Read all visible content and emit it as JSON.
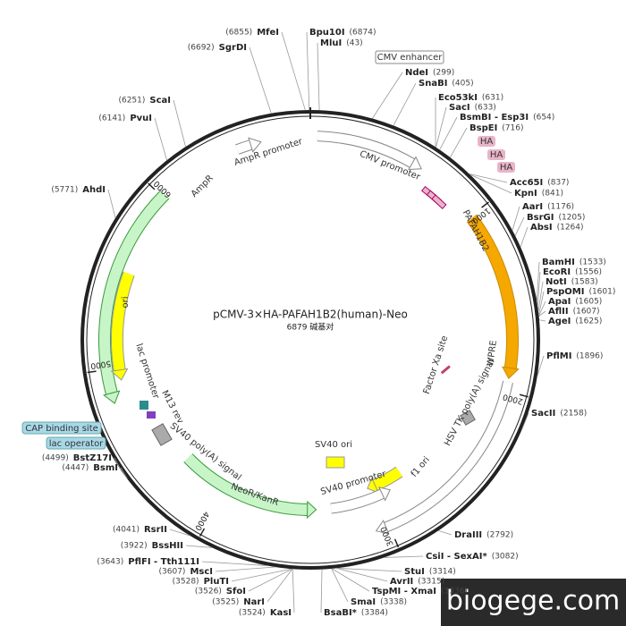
{
  "title": "pCMV-3×HA-PAFAH1B2(human)-Neo",
  "subtitle": "6879 碱基对",
  "watermark": "biogege.com",
  "ticks": [
    1000,
    2000,
    3000,
    4000,
    5000,
    6000
  ],
  "sites_right": [
    {
      "name": "Bpu10I",
      "position": "(6874)"
    },
    {
      "name": "MluI",
      "position": "(43)"
    },
    {
      "name": "NdeI",
      "position": "(299)"
    },
    {
      "name": "SnaBI",
      "position": "(405)"
    },
    {
      "name": "Eco53kI",
      "position": "(631)"
    },
    {
      "name": "SacI",
      "position": "(633)"
    },
    {
      "name": "BsmBI - Esp3I",
      "position": "(654)"
    },
    {
      "name": "BspEI",
      "position": "(716)"
    },
    {
      "name": "Acc65I",
      "position": "(837)"
    },
    {
      "name": "KpnI",
      "position": "(841)"
    },
    {
      "name": "AarI",
      "position": "(1176)"
    },
    {
      "name": "BsrGI",
      "position": "(1205)"
    },
    {
      "name": "AbsI",
      "position": "(1264)"
    },
    {
      "name": "BamHI",
      "position": "(1533)"
    },
    {
      "name": "EcoRI",
      "position": "(1556)"
    },
    {
      "name": "NotI",
      "position": "(1583)"
    },
    {
      "name": "PspOMI",
      "position": "(1601)"
    },
    {
      "name": "ApaI",
      "position": "(1605)"
    },
    {
      "name": "AflII",
      "position": "(1607)"
    },
    {
      "name": "AgeI",
      "position": "(1625)"
    },
    {
      "name": "PflMI",
      "position": "(1896)"
    },
    {
      "name": "SacII",
      "position": "(2158)"
    },
    {
      "name": "DraIII",
      "position": "(2792)"
    },
    {
      "name": "CsiI - SexAI*",
      "position": "(3082)"
    },
    {
      "name": "StuI",
      "position": "(3314)"
    },
    {
      "name": "AvrII",
      "position": "(3315)"
    },
    {
      "name": "TspMI - XmaI",
      "position": "(3336)"
    },
    {
      "name": "SmaI",
      "position": "(3338)"
    },
    {
      "name": "BsaBI*",
      "position": "(3384)"
    }
  ],
  "sites_left": [
    {
      "name": "MfeI",
      "position": "(6855)"
    },
    {
      "name": "SgrDI",
      "position": "(6692)"
    },
    {
      "name": "ScaI",
      "position": "(6251)"
    },
    {
      "name": "PvuI",
      "position": "(6141)"
    },
    {
      "name": "AhdI",
      "position": "(5771)"
    },
    {
      "name": "BstZ17I",
      "position": "(4499)"
    },
    {
      "name": "BsmI",
      "position": "(4447)"
    },
    {
      "name": "RsrII",
      "position": "(4041)"
    },
    {
      "name": "BssHII",
      "position": "(3922)"
    },
    {
      "name": "PflFI - Tth111I",
      "position": "(3643)"
    },
    {
      "name": "MscI",
      "position": "(3607)"
    },
    {
      "name": "PluTI",
      "position": "(3528)"
    },
    {
      "name": "SfoI",
      "position": "(3526)"
    },
    {
      "name": "NarI",
      "position": "(3525)"
    },
    {
      "name": "KasI",
      "position": "(3524)"
    }
  ],
  "features": {
    "cmv_enhancer": "CMV enhancer",
    "cmv_promoter": "CMV promoter",
    "ha": [
      "HA",
      "HA",
      "HA"
    ],
    "gene": "PAFAH1B2",
    "wpre": "WPRE",
    "factor_xa": "Factor Xa site",
    "hsv_tk": "HSV TK poly(A) signal",
    "f1_ori": "f1 ori",
    "sv40_promoter": "SV40 promoter",
    "sv40_ori": "SV40 ori",
    "neor": "NeoR/KanR",
    "sv40_polya": "SV40 poly(A) signal",
    "m13_rev": "M13 rev",
    "lac_promoter": "lac promoter",
    "cap": "CAP binding site",
    "lac_operator": "lac operator",
    "ori": "ori",
    "ampr": "AmpR",
    "ampr_promoter": "AmpR promoter"
  }
}
